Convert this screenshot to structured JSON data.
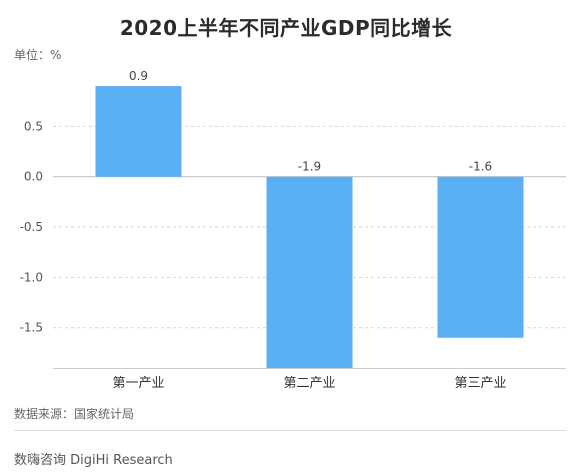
{
  "chart_data": {
    "type": "bar",
    "title": "2020上半年不同产业GDP同比增长",
    "unit_label": "单位：%",
    "categories": [
      "第一产业",
      "第二产业",
      "第三产业"
    ],
    "values": [
      0.9,
      -1.9,
      -1.6
    ],
    "value_labels": [
      "0.9",
      "-1.9",
      "-1.6"
    ],
    "y_ticks": [
      0.5,
      0.0,
      -0.5,
      -1.0,
      -1.5
    ],
    "y_tick_labels": [
      "0.5",
      "0.0",
      "-0.5",
      "-1.0",
      "-1.5"
    ],
    "ylim": [
      -1.9,
      1.0
    ],
    "grid": true,
    "bar_color": "#5aaef4"
  },
  "source": "数据来源：国家统计局",
  "brand": "数嗨咨询 DigiHi Research"
}
